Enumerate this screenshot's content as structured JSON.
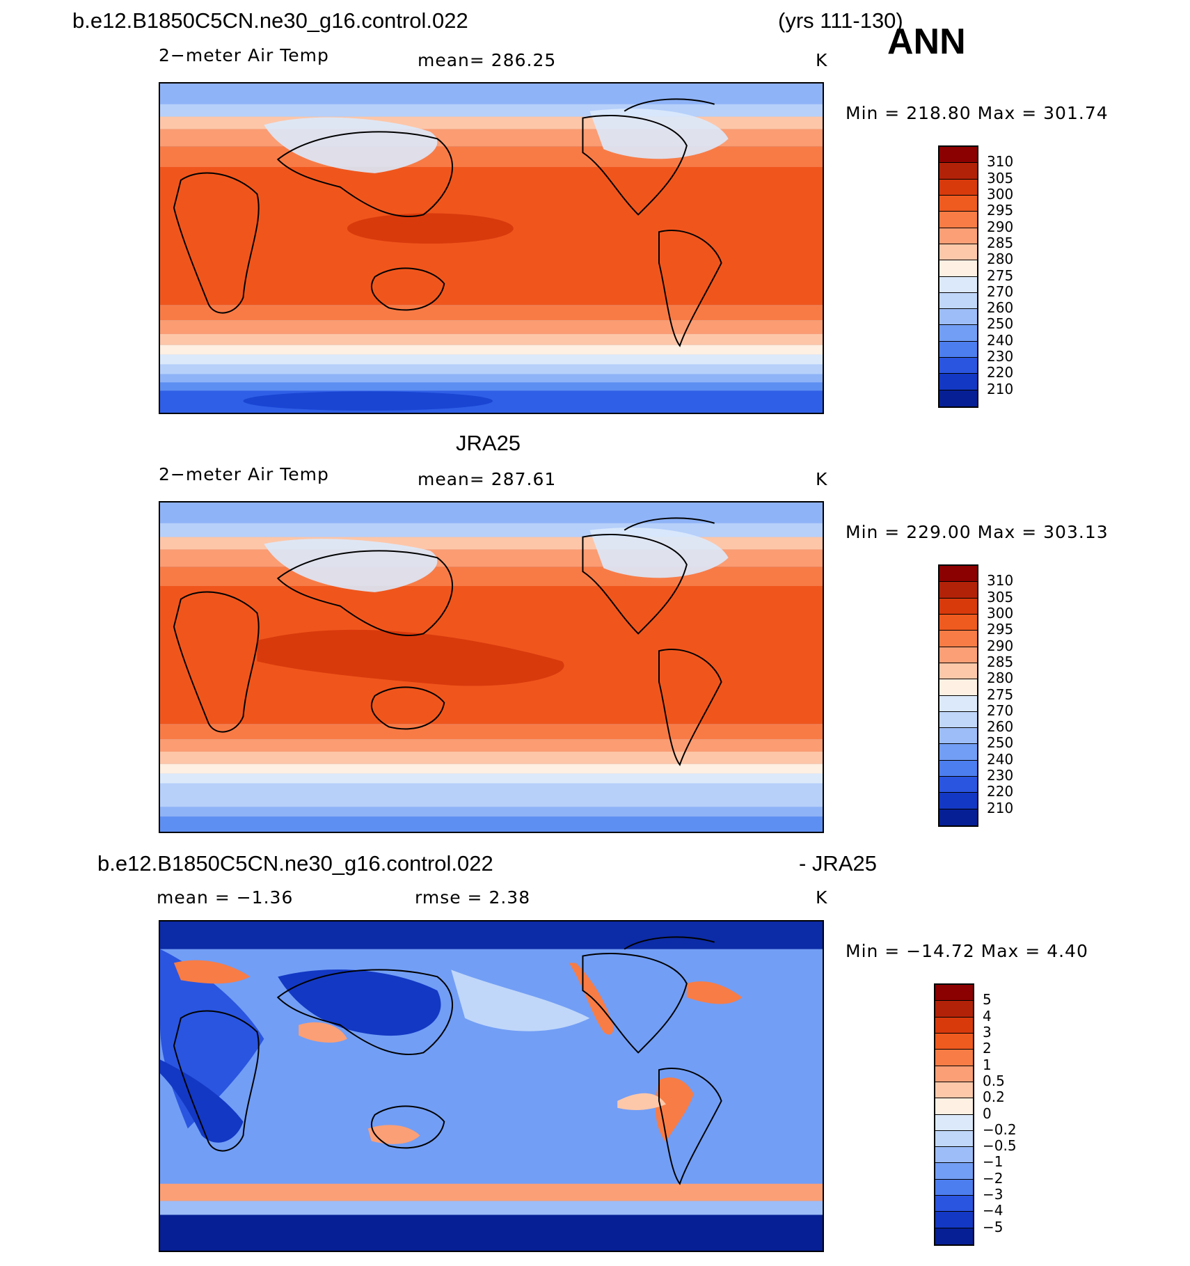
{
  "header": {
    "case_title": "b.e12.B1850C5CN.ne30_g16.control.022",
    "years": "(yrs 111-130)",
    "season": "ANN"
  },
  "panels": [
    {
      "title": "",
      "left_label": "2−meter Air Temp",
      "center_label": "mean=  286.25",
      "units": "K",
      "minmax": "Min  =  218.80  Max  =  301.74",
      "colorbar": {
        "labels": [
          "310",
          "305",
          "300",
          "295",
          "290",
          "285",
          "280",
          "275",
          "270",
          "260",
          "250",
          "240",
          "230",
          "220",
          "210"
        ],
        "colors": [
          "#8b0000",
          "#b22208",
          "#d83a0c",
          "#ef5a1f",
          "#f87c45",
          "#fb9f76",
          "#fdc8aa",
          "#fef0e2",
          "#dbe9fb",
          "#c0d7fa",
          "#9dbdf8",
          "#729ef5",
          "#4d7eef",
          "#2a55e0",
          "#1338c4",
          "#061f94"
        ]
      },
      "map_palette": {
        "hot": "#d93a0c",
        "warm": "#f0561c",
        "mid": "#f87b46",
        "peach": "#fb9c72",
        "light": "#fdc6a8",
        "pale": "#fef0e2",
        "cold1": "#dbe9fb",
        "cold2": "#b6d0fa",
        "cold3": "#8fb3f7",
        "cold4": "#5d8ff2",
        "cold5": "#2f5fe6",
        "cold6": "#1a45d3"
      }
    },
    {
      "title": "JRA25",
      "left_label": "2−meter Air Temp",
      "center_label": "mean=  287.61",
      "units": "K",
      "minmax": "Min  =  229.00  Max  =  303.13",
      "colorbar": {
        "labels": [
          "310",
          "305",
          "300",
          "295",
          "290",
          "285",
          "280",
          "275",
          "270",
          "260",
          "250",
          "240",
          "230",
          "220",
          "210"
        ],
        "colors": [
          "#8b0000",
          "#b22208",
          "#d83a0c",
          "#ef5a1f",
          "#f87c45",
          "#fb9f76",
          "#fdc8aa",
          "#fef0e2",
          "#dbe9fb",
          "#c0d7fa",
          "#9dbdf8",
          "#729ef5",
          "#4d7eef",
          "#2a55e0",
          "#1338c4",
          "#061f94"
        ]
      }
    },
    {
      "title_left": "b.e12.B1850C5CN.ne30_g16.control.022",
      "title_right": "- JRA25",
      "left_label": "mean =    −1.36",
      "center_label": "rmse  =     2.38",
      "units": "K",
      "minmax": "Min  =  −14.72  Max  =     4.40",
      "colorbar": {
        "labels": [
          "5",
          "4",
          "3",
          "2",
          "1",
          "0.5",
          "0.2",
          "0",
          "−0.2",
          "−0.5",
          "−1",
          "−2",
          "−3",
          "−4",
          "−5"
        ],
        "colors": [
          "#8b0000",
          "#b22208",
          "#d83a0c",
          "#ef5a1f",
          "#f87c45",
          "#fb9f76",
          "#fdc8aa",
          "#fef0e2",
          "#dbe9fb",
          "#c0d7fa",
          "#9dbdf8",
          "#729ef5",
          "#4d7eef",
          "#2a55e0",
          "#1338c4",
          "#061f94"
        ]
      }
    }
  ]
}
